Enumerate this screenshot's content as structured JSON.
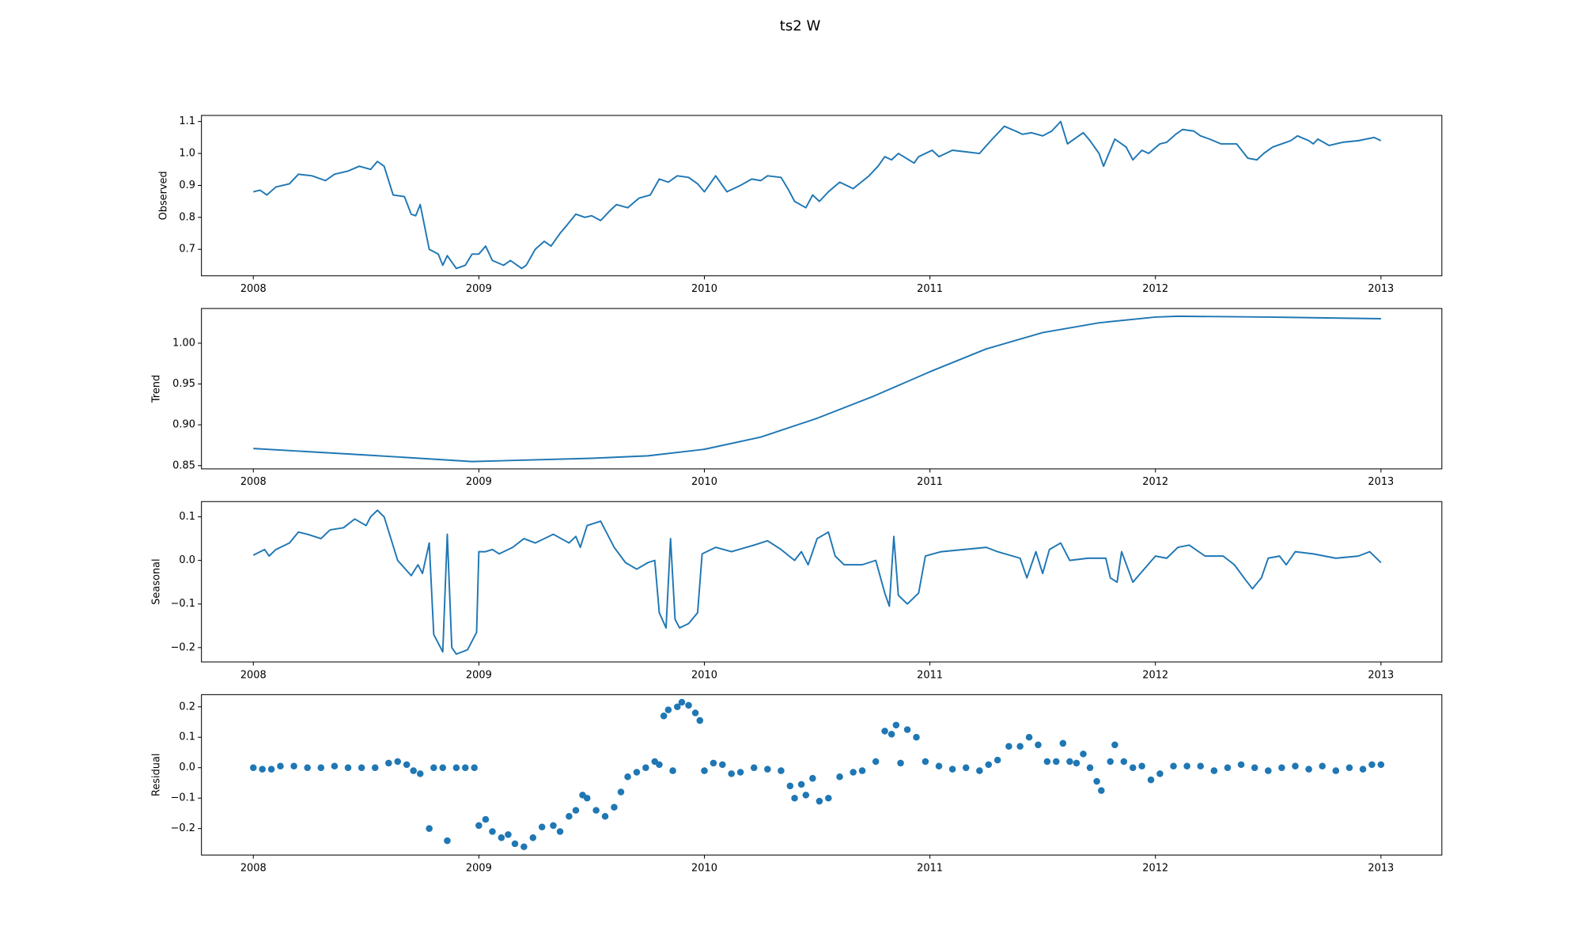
{
  "title": "ts2 W",
  "chart_data": [
    {
      "type": "line",
      "ylabel": "Observed",
      "color": "#1f77b4",
      "xlim": [
        2007.77,
        2013.27
      ],
      "xticks": [
        2008,
        2009,
        2010,
        2011,
        2012,
        2013
      ],
      "ylim": [
        0.617,
        1.119
      ],
      "yticks": [
        0.7,
        0.8,
        0.9,
        {
          "value": 1,
          "label": "1.0"
        },
        1.1
      ],
      "x": [
        2008.0,
        2008.03,
        2008.06,
        2008.1,
        2008.16,
        2008.2,
        2008.26,
        2008.32,
        2008.36,
        2008.42,
        2008.47,
        2008.52,
        2008.55,
        2008.58,
        2008.62,
        2008.67,
        2008.7,
        2008.72,
        2008.74,
        2008.78,
        2008.82,
        2008.84,
        2008.86,
        2008.9,
        2008.94,
        2008.97,
        2009.0,
        2009.03,
        2009.06,
        2009.11,
        2009.14,
        2009.19,
        2009.21,
        2009.25,
        2009.29,
        2009.32,
        2009.36,
        2009.39,
        2009.43,
        2009.47,
        2009.5,
        2009.54,
        2009.58,
        2009.61,
        2009.66,
        2009.71,
        2009.76,
        2009.8,
        2009.84,
        2009.88,
        2009.93,
        2009.97,
        2010.0,
        2010.05,
        2010.1,
        2010.16,
        2010.21,
        2010.25,
        2010.28,
        2010.34,
        2010.37,
        2010.4,
        2010.45,
        2010.48,
        2010.51,
        2010.55,
        2010.6,
        2010.66,
        2010.73,
        2010.77,
        2010.8,
        2010.83,
        2010.86,
        2010.93,
        2010.95,
        2011.01,
        2011.04,
        2011.1,
        2011.16,
        2011.22,
        2011.27,
        2011.33,
        2011.38,
        2011.41,
        2011.45,
        2011.5,
        2011.54,
        2011.58,
        2011.61,
        2011.65,
        2011.68,
        2011.71,
        2011.75,
        2011.77,
        2011.82,
        2011.87,
        2011.9,
        2011.94,
        2011.97,
        2012.02,
        2012.05,
        2012.09,
        2012.12,
        2012.17,
        2012.2,
        2012.24,
        2012.29,
        2012.36,
        2012.41,
        2012.45,
        2012.48,
        2012.52,
        2012.56,
        2012.6,
        2012.63,
        2012.68,
        2012.7,
        2012.72,
        2012.77,
        2012.83,
        2012.9,
        2012.97,
        2013.0
      ],
      "values": [
        0.88,
        0.885,
        0.87,
        0.895,
        0.905,
        0.935,
        0.93,
        0.915,
        0.935,
        0.945,
        0.96,
        0.95,
        0.975,
        0.96,
        0.87,
        0.865,
        0.81,
        0.805,
        0.84,
        0.7,
        0.685,
        0.65,
        0.68,
        0.64,
        0.65,
        0.685,
        0.685,
        0.71,
        0.665,
        0.65,
        0.665,
        0.64,
        0.65,
        0.7,
        0.725,
        0.71,
        0.75,
        0.775,
        0.81,
        0.8,
        0.805,
        0.79,
        0.82,
        0.84,
        0.83,
        0.86,
        0.87,
        0.92,
        0.91,
        0.93,
        0.925,
        0.905,
        0.88,
        0.93,
        0.88,
        0.9,
        0.92,
        0.915,
        0.93,
        0.925,
        0.89,
        0.85,
        0.83,
        0.87,
        0.85,
        0.88,
        0.91,
        0.89,
        0.93,
        0.96,
        0.99,
        0.98,
        1.0,
        0.97,
        0.99,
        1.01,
        0.99,
        1.01,
        1.005,
        1.0,
        1.04,
        1.085,
        1.07,
        1.06,
        1.065,
        1.055,
        1.07,
        1.1,
        1.03,
        1.05,
        1.065,
        1.04,
        1.0,
        0.96,
        1.045,
        1.02,
        0.98,
        1.01,
        1.0,
        1.03,
        1.035,
        1.06,
        1.075,
        1.07,
        1.055,
        1.045,
        1.03,
        1.03,
        0.985,
        0.98,
        1.0,
        1.02,
        1.03,
        1.04,
        1.055,
        1.04,
        1.03,
        1.045,
        1.025,
        1.035,
        1.04,
        1.05,
        1.04
      ]
    },
    {
      "type": "line",
      "ylabel": "Trend",
      "color": "#1f77b4",
      "xlim": [
        2007.77,
        2013.27
      ],
      "xticks": [
        2008,
        2009,
        2010,
        2011,
        2012,
        2013
      ],
      "ylim": [
        0.846,
        1.0425
      ],
      "yticks": [
        0.85,
        {
          "value": 0.9,
          "label": "0.90"
        },
        0.95,
        {
          "value": 1,
          "label": "1.00"
        }
      ],
      "x": [
        2008.0,
        2008.5,
        2008.97,
        2009.5,
        2009.75,
        2010.0,
        2010.25,
        2010.5,
        2010.75,
        2011.0,
        2011.25,
        2011.5,
        2011.75,
        2012.0,
        2012.1,
        2012.5,
        2013.0
      ],
      "values": [
        0.871,
        0.863,
        0.855,
        0.859,
        0.862,
        0.87,
        0.885,
        0.908,
        0.935,
        0.965,
        0.993,
        1.013,
        1.025,
        1.032,
        1.033,
        1.032,
        1.03
      ]
    },
    {
      "type": "line",
      "ylabel": "Seasonal",
      "color": "#1f77b4",
      "xlim": [
        2007.77,
        2013.27
      ],
      "xticks": [
        2008,
        2009,
        2010,
        2011,
        2012,
        2013
      ],
      "ylim": [
        -0.233,
        0.135
      ],
      "yticks": [
        {
          "value": -0.2,
          "label": "−0.2"
        },
        {
          "value": -0.1,
          "label": "−0.1"
        },
        {
          "value": 0,
          "label": "0.0"
        },
        0.1
      ],
      "x": [
        2008.0,
        2008.05,
        2008.07,
        2008.1,
        2008.16,
        2008.2,
        2008.24,
        2008.3,
        2008.34,
        2008.4,
        2008.45,
        2008.5,
        2008.52,
        2008.55,
        2008.58,
        2008.64,
        2008.7,
        2008.73,
        2008.75,
        2008.78,
        2008.8,
        2008.84,
        2008.86,
        2008.88,
        2008.9,
        2008.95,
        2008.99,
        2009.0,
        2009.03,
        2009.06,
        2009.09,
        2009.15,
        2009.2,
        2009.25,
        2009.33,
        2009.4,
        2009.43,
        2009.45,
        2009.48,
        2009.54,
        2009.6,
        2009.65,
        2009.7,
        2009.75,
        2009.78,
        2009.8,
        2009.83,
        2009.85,
        2009.87,
        2009.89,
        2009.93,
        2009.97,
        2009.99,
        2010.05,
        2010.12,
        2010.22,
        2010.28,
        2010.34,
        2010.4,
        2010.43,
        2010.46,
        2010.5,
        2010.55,
        2010.58,
        2010.62,
        2010.7,
        2010.76,
        2010.8,
        2010.82,
        2010.84,
        2010.86,
        2010.9,
        2010.95,
        2010.98,
        2011.05,
        2011.15,
        2011.25,
        2011.3,
        2011.4,
        2011.43,
        2011.47,
        2011.5,
        2011.53,
        2011.58,
        2011.62,
        2011.7,
        2011.78,
        2011.8,
        2011.83,
        2011.85,
        2011.9,
        2011.95,
        2012.0,
        2012.05,
        2012.1,
        2012.15,
        2012.22,
        2012.3,
        2012.35,
        2012.4,
        2012.43,
        2012.47,
        2012.5,
        2012.55,
        2012.58,
        2012.62,
        2012.7,
        2012.8,
        2012.9,
        2012.95,
        2013.0
      ],
      "values": [
        0.012,
        0.025,
        0.01,
        0.025,
        0.04,
        0.065,
        0.06,
        0.05,
        0.07,
        0.075,
        0.095,
        0.08,
        0.1,
        0.115,
        0.1,
        0.0,
        -0.035,
        -0.01,
        -0.03,
        0.04,
        -0.17,
        -0.21,
        0.06,
        -0.2,
        -0.215,
        -0.205,
        -0.165,
        0.02,
        0.02,
        0.025,
        0.015,
        0.03,
        0.05,
        0.04,
        0.06,
        0.04,
        0.055,
        0.03,
        0.08,
        0.09,
        0.03,
        -0.005,
        -0.02,
        -0.005,
        0.0,
        -0.12,
        -0.155,
        0.05,
        -0.135,
        -0.155,
        -0.145,
        -0.12,
        0.015,
        0.03,
        0.02,
        0.035,
        0.045,
        0.025,
        0.0,
        0.02,
        -0.01,
        0.05,
        0.065,
        0.01,
        -0.01,
        -0.01,
        0.0,
        -0.075,
        -0.105,
        0.055,
        -0.08,
        -0.1,
        -0.075,
        0.01,
        0.02,
        0.025,
        0.03,
        0.02,
        0.005,
        -0.04,
        0.02,
        -0.03,
        0.025,
        0.04,
        0.0,
        0.005,
        0.005,
        -0.04,
        -0.05,
        0.02,
        -0.05,
        -0.02,
        0.01,
        0.005,
        0.03,
        0.035,
        0.01,
        0.01,
        -0.01,
        -0.045,
        -0.065,
        -0.04,
        0.005,
        0.01,
        -0.01,
        0.02,
        0.015,
        0.005,
        0.01,
        0.02,
        -0.005
      ]
    },
    {
      "type": "scatter",
      "ylabel": "Residual",
      "color": "#1f77b4",
      "xlim": [
        2007.77,
        2013.27
      ],
      "xticks": [
        2008,
        2009,
        2010,
        2011,
        2012,
        2013
      ],
      "ylim": [
        -0.287,
        0.24
      ],
      "yticks": [
        {
          "value": -0.2,
          "label": "−0.2"
        },
        {
          "value": -0.1,
          "label": "−0.1"
        },
        {
          "value": 0,
          "label": "0.0"
        },
        0.1,
        0.2
      ],
      "x": [
        2008.0,
        2008.04,
        2008.08,
        2008.12,
        2008.18,
        2008.24,
        2008.3,
        2008.36,
        2008.42,
        2008.48,
        2008.54,
        2008.6,
        2008.64,
        2008.68,
        2008.71,
        2008.74,
        2008.78,
        2008.8,
        2008.84,
        2008.86,
        2008.9,
        2008.94,
        2008.98,
        2009.0,
        2009.03,
        2009.06,
        2009.1,
        2009.13,
        2009.16,
        2009.2,
        2009.24,
        2009.28,
        2009.33,
        2009.36,
        2009.4,
        2009.43,
        2009.46,
        2009.48,
        2009.52,
        2009.56,
        2009.6,
        2009.63,
        2009.66,
        2009.7,
        2009.74,
        2009.78,
        2009.8,
        2009.82,
        2009.84,
        2009.86,
        2009.88,
        2009.9,
        2009.93,
        2009.96,
        2009.98,
        2010.0,
        2010.04,
        2010.08,
        2010.12,
        2010.16,
        2010.22,
        2010.28,
        2010.34,
        2010.38,
        2010.4,
        2010.43,
        2010.45,
        2010.48,
        2010.51,
        2010.55,
        2010.6,
        2010.66,
        2010.7,
        2010.76,
        2010.8,
        2010.83,
        2010.85,
        2010.87,
        2010.9,
        2010.94,
        2010.98,
        2011.04,
        2011.1,
        2011.16,
        2011.22,
        2011.26,
        2011.3,
        2011.35,
        2011.4,
        2011.44,
        2011.48,
        2011.52,
        2011.56,
        2011.59,
        2011.62,
        2011.65,
        2011.68,
        2011.71,
        2011.74,
        2011.76,
        2011.8,
        2011.82,
        2011.86,
        2011.9,
        2011.94,
        2011.98,
        2012.02,
        2012.08,
        2012.14,
        2012.2,
        2012.26,
        2012.32,
        2012.38,
        2012.44,
        2012.5,
        2012.56,
        2012.62,
        2012.68,
        2012.74,
        2012.8,
        2012.86,
        2012.92,
        2012.96,
        2013.0
      ],
      "values": [
        0.0,
        -0.005,
        -0.005,
        0.005,
        0.005,
        0.0,
        0.0,
        0.005,
        0.0,
        0.0,
        0.0,
        0.015,
        0.02,
        0.01,
        -0.01,
        -0.02,
        -0.2,
        0.0,
        0.0,
        -0.24,
        0.0,
        0.0,
        0.0,
        -0.19,
        -0.17,
        -0.21,
        -0.23,
        -0.22,
        -0.25,
        -0.26,
        -0.23,
        -0.195,
        -0.19,
        -0.21,
        -0.16,
        -0.14,
        -0.09,
        -0.1,
        -0.14,
        -0.16,
        -0.13,
        -0.08,
        -0.03,
        -0.015,
        0.0,
        0.02,
        0.01,
        0.17,
        0.19,
        -0.01,
        0.2,
        0.215,
        0.205,
        0.18,
        0.155,
        -0.01,
        0.015,
        0.01,
        -0.02,
        -0.015,
        0.0,
        -0.005,
        -0.01,
        -0.06,
        -0.1,
        -0.055,
        -0.09,
        -0.035,
        -0.11,
        -0.1,
        -0.03,
        -0.015,
        -0.01,
        0.02,
        0.12,
        0.11,
        0.14,
        0.015,
        0.125,
        0.1,
        0.02,
        0.005,
        -0.005,
        0.0,
        -0.01,
        0.01,
        0.025,
        0.07,
        0.07,
        0.1,
        0.075,
        0.02,
        0.02,
        0.08,
        0.02,
        0.015,
        0.045,
        0.0,
        -0.045,
        -0.075,
        0.02,
        0.075,
        0.02,
        0.0,
        0.005,
        -0.04,
        -0.02,
        0.005,
        0.005,
        0.005,
        -0.01,
        0.0,
        0.01,
        0.0,
        -0.01,
        0.0,
        0.005,
        -0.005,
        0.005,
        -0.01,
        0.0,
        -0.005,
        0.01,
        0.01
      ]
    }
  ]
}
